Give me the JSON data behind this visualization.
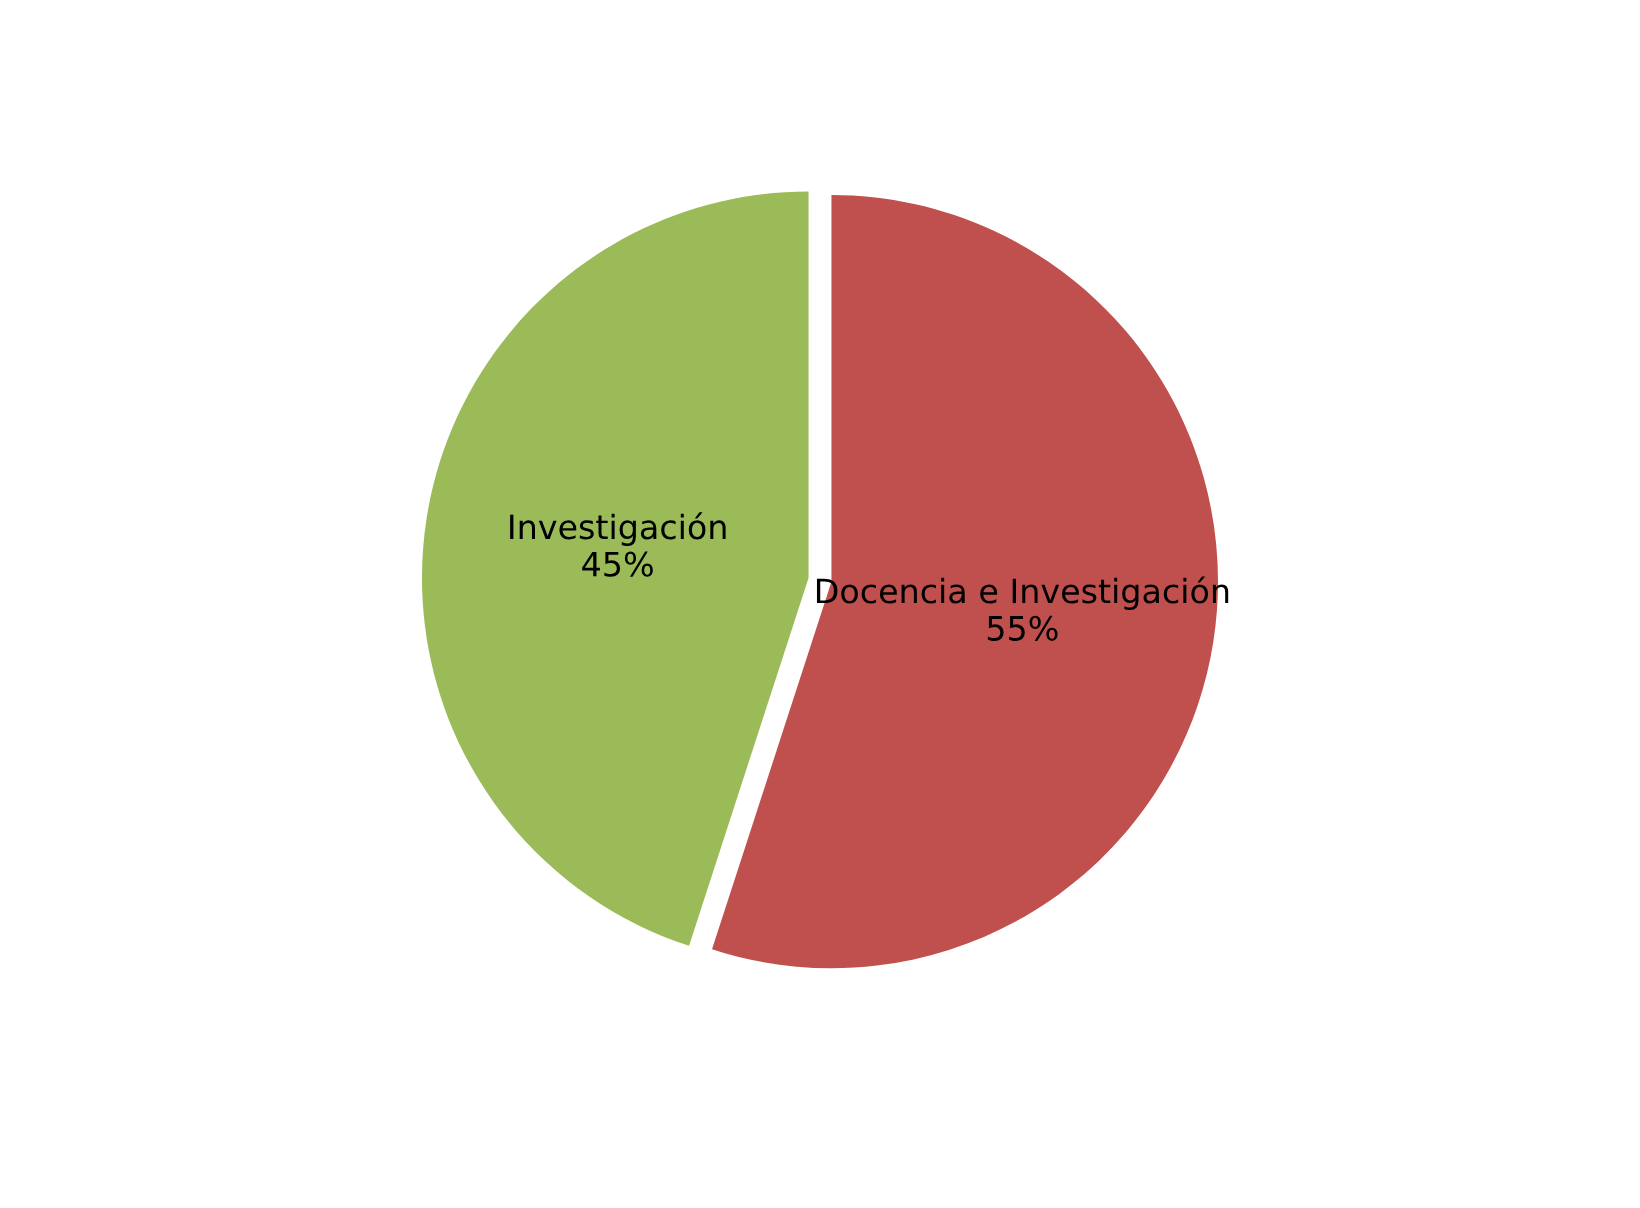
{
  "chart_data": {
    "type": "pie",
    "categories": [
      "Docencia e Investigación",
      "Investigación"
    ],
    "values": [
      55,
      45
    ],
    "colors": [
      "#c0504d",
      "#9bbb59"
    ],
    "value_labels": [
      "55%",
      "45%"
    ]
  }
}
